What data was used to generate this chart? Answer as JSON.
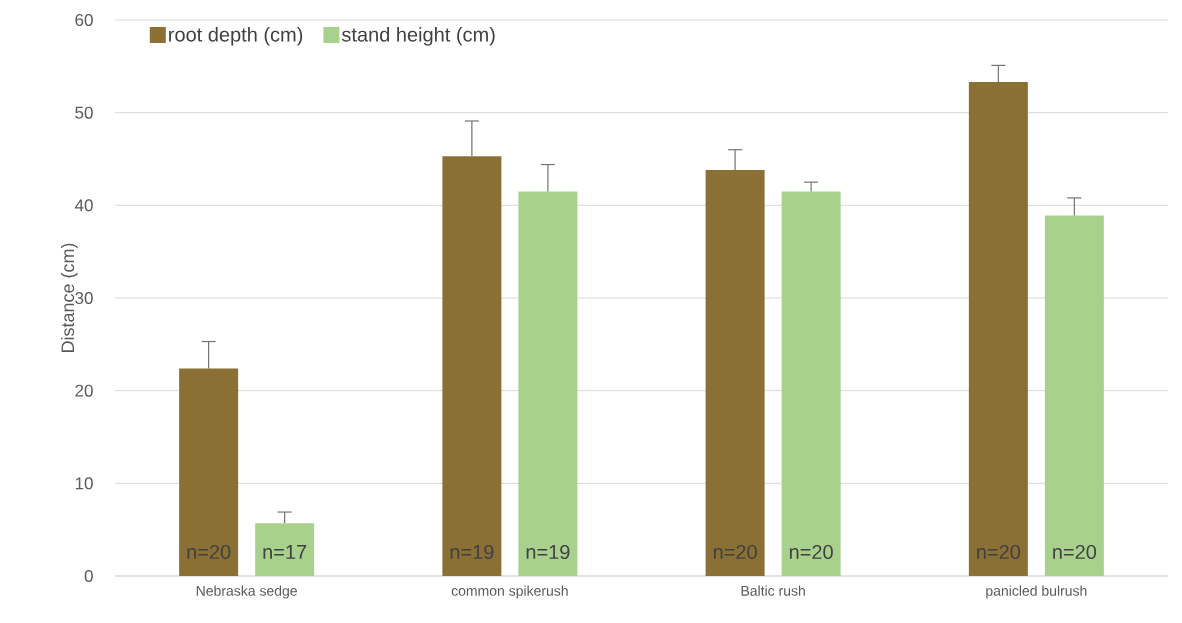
{
  "chart_data": {
    "type": "bar",
    "ylabel": "Distance (cm)",
    "categories": [
      "Nebraska sedge",
      "common spikerush",
      "Baltic rush",
      "panicled bulrush"
    ],
    "series": [
      {
        "name": "root depth (cm)",
        "color": "#8a7034",
        "values": [
          22.4,
          45.3,
          43.8,
          53.3
        ],
        "errors": [
          [
            22.4,
            25.3
          ],
          [
            45.3,
            49.1
          ],
          [
            43.8,
            46.0
          ],
          [
            53.3,
            55.1
          ]
        ]
      },
      {
        "name": "stand height (cm)",
        "color": "#a9d18e",
        "values": [
          5.7,
          41.5,
          41.5,
          38.9
        ],
        "errors": [
          [
            5.7,
            6.9
          ],
          [
            41.5,
            44.4
          ],
          [
            41.5,
            42.5
          ],
          [
            38.9,
            40.8
          ]
        ]
      }
    ],
    "ylim": [
      0,
      60
    ],
    "yticks": [
      0,
      10,
      20,
      30,
      40,
      50,
      60
    ],
    "grid": "y",
    "legend": "top left",
    "annotations": [
      "n=20",
      "n=17",
      "n=19",
      "n=19",
      "n=20",
      "n=20",
      "n=20",
      "n=20"
    ]
  }
}
